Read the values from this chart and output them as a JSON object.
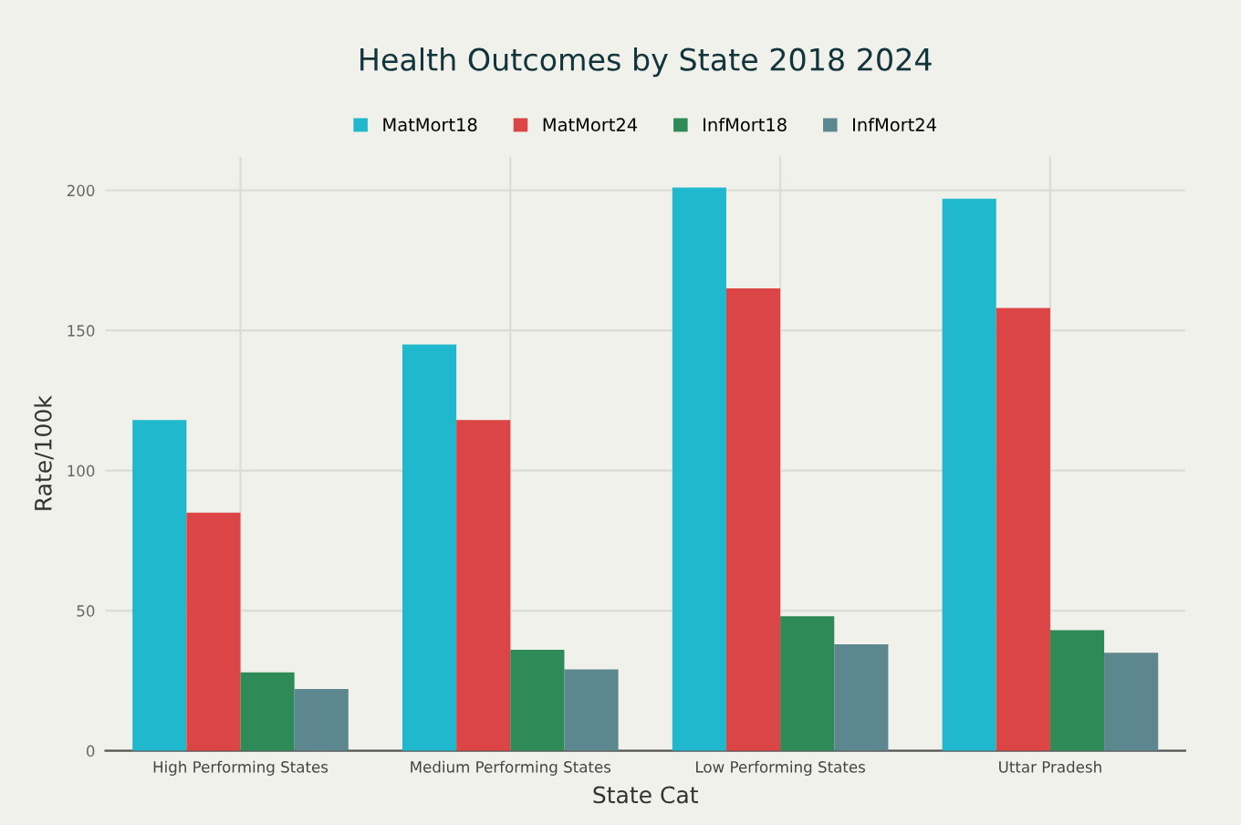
{
  "chart_data": {
    "type": "bar",
    "title": "Health Outcomes by State 2018 2024",
    "xlabel": "State Cat",
    "ylabel": "Rate/100k",
    "categories": [
      "High Performing States",
      "Medium Performing States",
      "Low Performing States",
      "Uttar Pradesh"
    ],
    "series": [
      {
        "name": "MatMort18",
        "color": "#1fb8cd",
        "values": [
          118,
          145,
          201,
          197
        ]
      },
      {
        "name": "MatMort24",
        "color": "#db4545",
        "values": [
          85,
          118,
          165,
          158
        ]
      },
      {
        "name": "InfMort18",
        "color": "#2e8b57",
        "values": [
          28,
          36,
          48,
          43
        ]
      },
      {
        "name": "InfMort24",
        "color": "#5d878f",
        "values": [
          22,
          29,
          38,
          35
        ]
      }
    ],
    "ylim": [
      0,
      212
    ],
    "yticks": [
      0,
      50,
      100,
      150,
      200
    ],
    "grid": true,
    "legend": "top"
  }
}
